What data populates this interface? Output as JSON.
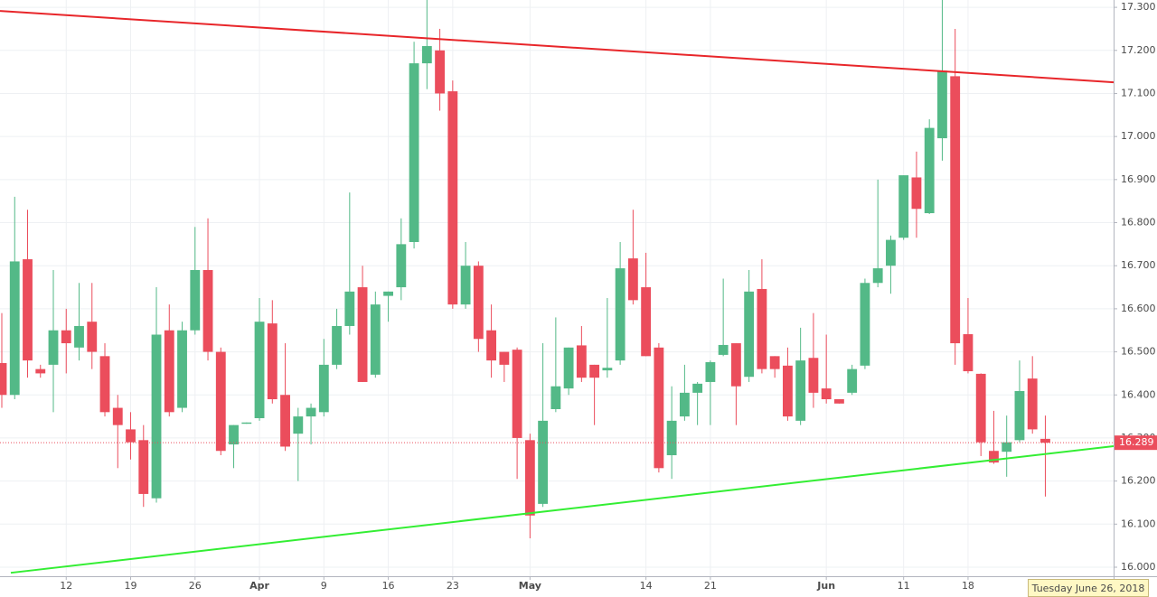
{
  "chart_data": {
    "type": "candlestick",
    "categories": [
      null,
      null,
      null,
      null,
      null,
      "12",
      null,
      null,
      null,
      null,
      "19",
      null,
      null,
      null,
      null,
      "26",
      null,
      null,
      null,
      null,
      "Apr",
      null,
      null,
      null,
      null,
      "9",
      null,
      null,
      null,
      null,
      "16",
      null,
      null,
      null,
      null,
      "23",
      null,
      null,
      null,
      null,
      null,
      "May",
      null,
      null,
      null,
      null,
      null,
      null,
      null,
      null,
      "14",
      null,
      null,
      null,
      null,
      "21",
      null,
      null,
      null,
      null,
      null,
      null,
      null,
      null,
      "Jun",
      null,
      null,
      null,
      null,
      null,
      "11",
      null,
      null,
      null,
      null,
      "18",
      null,
      null,
      null,
      null,
      null,
      null
    ],
    "open": [
      16.474,
      16.4,
      16.715,
      16.46,
      16.47,
      16.55,
      16.51,
      16.57,
      16.49,
      16.37,
      16.32,
      16.295,
      16.16,
      16.55,
      16.37,
      16.55,
      16.69,
      16.5,
      16.285,
      16.333,
      16.346,
      16.566,
      16.4,
      16.31,
      16.35,
      16.36,
      16.47,
      16.56,
      16.65,
      16.447,
      16.63,
      16.65,
      16.755,
      17.17,
      17.2,
      17.105,
      16.61,
      16.7,
      16.55,
      16.5,
      16.505,
      16.295,
      16.147,
      16.367,
      16.415,
      16.515,
      16.47,
      16.457,
      16.48,
      16.717,
      16.65,
      16.51,
      16.26,
      16.35,
      16.405,
      16.43,
      16.493,
      16.52,
      16.442,
      16.646,
      16.49,
      16.468,
      16.34,
      16.486,
      16.415,
      16.39,
      16.405,
      16.468,
      16.66,
      16.7,
      16.765,
      16.905,
      16.822,
      16.996,
      17.14,
      16.541,
      16.449,
      16.27,
      16.268,
      16.295,
      16.438,
      16.298
    ],
    "high": [
      16.59,
      16.86,
      16.83,
      16.47,
      16.69,
      16.6,
      16.66,
      16.66,
      16.52,
      16.4,
      16.36,
      16.33,
      16.65,
      16.61,
      16.57,
      16.79,
      16.81,
      16.51,
      16.33,
      16.336,
      16.625,
      16.62,
      16.52,
      16.37,
      16.38,
      16.53,
      16.6,
      16.87,
      16.7,
      16.64,
      16.64,
      16.81,
      17.22,
      17.32,
      17.25,
      17.13,
      16.755,
      16.71,
      16.61,
      16.5,
      16.51,
      16.31,
      16.52,
      16.58,
      16.51,
      16.56,
      16.47,
      16.625,
      16.755,
      16.83,
      16.73,
      16.52,
      16.42,
      16.47,
      16.43,
      16.48,
      16.67,
      16.52,
      16.69,
      16.715,
      16.49,
      16.51,
      16.556,
      16.59,
      16.54,
      16.39,
      16.47,
      16.67,
      16.9,
      16.77,
      16.91,
      16.965,
      17.04,
      17.32,
      17.25,
      16.625,
      16.45,
      16.363,
      16.352,
      16.48,
      16.49,
      16.352
    ],
    "low": [
      16.37,
      16.39,
      16.44,
      16.44,
      16.36,
      16.45,
      16.48,
      16.46,
      16.35,
      16.23,
      16.25,
      16.14,
      16.15,
      16.35,
      16.36,
      16.54,
      16.48,
      16.26,
      16.23,
      16.333,
      16.34,
      16.38,
      16.27,
      16.2,
      16.285,
      16.35,
      16.46,
      16.54,
      16.43,
      16.44,
      16.57,
      16.62,
      16.74,
      17.11,
      17.06,
      16.6,
      16.6,
      16.5,
      16.44,
      16.43,
      16.205,
      16.067,
      16.14,
      16.36,
      16.4,
      16.43,
      16.33,
      16.44,
      16.47,
      16.61,
      16.49,
      16.22,
      16.205,
      16.34,
      16.33,
      16.33,
      16.49,
      16.33,
      16.43,
      16.45,
      16.44,
      16.34,
      16.33,
      16.37,
      16.38,
      16.38,
      16.4,
      16.46,
      16.65,
      16.635,
      16.76,
      16.765,
      16.82,
      16.944,
      16.47,
      16.45,
      16.258,
      16.24,
      16.21,
      16.29,
      16.31,
      16.164
    ],
    "close": [
      16.4,
      16.71,
      16.48,
      16.45,
      16.55,
      16.52,
      16.56,
      16.5,
      16.36,
      16.33,
      16.29,
      16.17,
      16.54,
      16.36,
      16.55,
      16.69,
      16.5,
      16.27,
      16.33,
      16.336,
      16.57,
      16.39,
      16.28,
      16.35,
      16.37,
      16.47,
      16.56,
      16.64,
      16.43,
      16.61,
      16.64,
      16.75,
      17.17,
      17.21,
      17.1,
      16.61,
      16.7,
      16.53,
      16.48,
      16.47,
      16.3,
      16.12,
      16.34,
      16.42,
      16.51,
      16.44,
      16.44,
      16.463,
      16.694,
      16.62,
      16.49,
      16.23,
      16.34,
      16.405,
      16.426,
      16.476,
      16.516,
      16.42,
      16.64,
      16.46,
      16.46,
      16.35,
      16.48,
      16.405,
      16.39,
      16.38,
      16.46,
      16.66,
      16.694,
      16.76,
      16.91,
      16.832,
      17.02,
      17.153,
      16.52,
      16.455,
      16.29,
      16.243,
      16.29,
      16.409,
      16.32,
      16.289
    ],
    "up_color": "#53b987",
    "down_color": "#eb4d5c",
    "xlim": [
      -0.14,
      86.3
    ],
    "ylim": [
      15.979,
      17.317
    ],
    "yticks": [
      {
        "value": 16.0,
        "label": "16.000"
      },
      {
        "value": 16.1,
        "label": "16.100"
      },
      {
        "value": 16.2,
        "label": "16.200"
      },
      {
        "value": 16.3,
        "label": "16.300"
      },
      {
        "value": 16.4,
        "label": "16.400"
      },
      {
        "value": 16.5,
        "label": "16.500"
      },
      {
        "value": 16.6,
        "label": "16.600"
      },
      {
        "value": 16.7,
        "label": "16.700"
      },
      {
        "value": 16.8,
        "label": "16.800"
      },
      {
        "value": 16.9,
        "label": "16.900"
      },
      {
        "value": 17.0,
        "label": "17.000"
      },
      {
        "value": 17.1,
        "label": "17.100"
      },
      {
        "value": 17.2,
        "label": "17.200"
      },
      {
        "value": 17.3,
        "label": "17.300"
      }
    ],
    "grid": true,
    "trend_lines": [
      {
        "color": "#e8262a",
        "x": [
          -0.14,
          86.3
        ],
        "values": [
          17.2917,
          17.126
        ]
      },
      {
        "color": "#33ee33",
        "x": [
          0.7,
          86.3
        ],
        "values": [
          15.987,
          16.281
        ]
      }
    ],
    "last_price": 16.289,
    "last_price_color": "#eb4d5c",
    "crosshair_label": "Tuesday June 26, 2018"
  }
}
